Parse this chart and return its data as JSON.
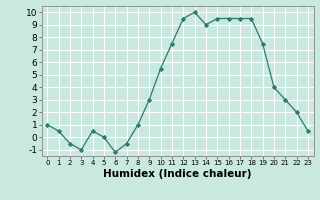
{
  "x": [
    0,
    1,
    2,
    3,
    4,
    5,
    6,
    7,
    8,
    9,
    10,
    11,
    12,
    13,
    14,
    15,
    16,
    17,
    18,
    19,
    20,
    21,
    22,
    23
  ],
  "y": [
    1.0,
    0.5,
    -0.5,
    -1.0,
    0.5,
    0.0,
    -1.2,
    -0.5,
    1.0,
    3.0,
    5.5,
    7.5,
    9.5,
    10.0,
    9.0,
    9.5,
    9.5,
    9.5,
    9.5,
    7.5,
    4.0,
    3.0,
    2.0,
    0.5
  ],
  "xlabel": "Humidex (Indice chaleur)",
  "xlim": [
    -0.5,
    23.5
  ],
  "ylim": [
    -1.5,
    10.5
  ],
  "yticks": [
    -1,
    0,
    1,
    2,
    3,
    4,
    5,
    6,
    7,
    8,
    9,
    10
  ],
  "xticks": [
    0,
    1,
    2,
    3,
    4,
    5,
    6,
    7,
    8,
    9,
    10,
    11,
    12,
    13,
    14,
    15,
    16,
    17,
    18,
    19,
    20,
    21,
    22,
    23
  ],
  "line_color": "#2d7a6e",
  "marker_color": "#2d7a6e",
  "bg_color": "#c8e8e0",
  "grid_color": "#ffffff",
  "fig_bg": "#c8e8e0",
  "xlabel_fontsize": 7.5,
  "tick_fontsize_x": 5.0,
  "tick_fontsize_y": 6.5
}
